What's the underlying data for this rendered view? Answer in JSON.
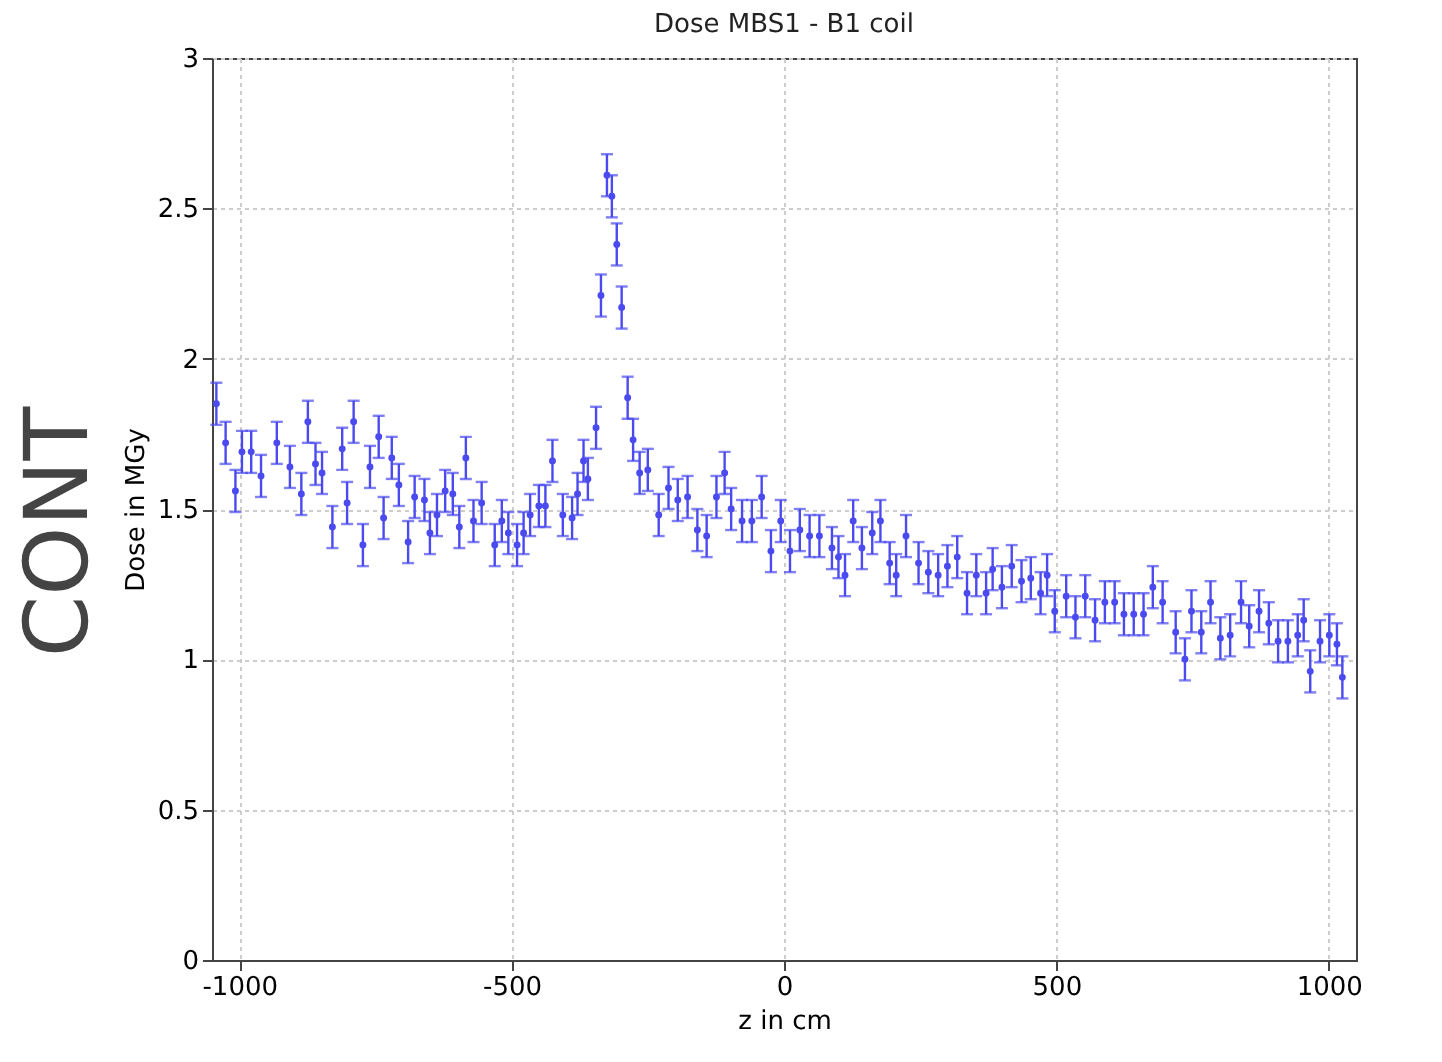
{
  "chart_data": {
    "type": "scatter",
    "title": "Dose MBS1 - B1 coil",
    "xlabel": "z in cm",
    "ylabel": "Dose in MGy",
    "annotations": [
      "CONT"
    ],
    "x": [
      -1042,
      -1025,
      -1007,
      -995,
      -978,
      -960,
      -931,
      -907,
      -886,
      -874,
      -860,
      -848,
      -829,
      -811,
      -802,
      -790,
      -773,
      -760,
      -744,
      -735,
      -720,
      -707,
      -690,
      -678,
      -660,
      -650,
      -637,
      -622,
      -608,
      -596,
      -584,
      -570,
      -555,
      -531,
      -518,
      -506,
      -490,
      -478,
      -466,
      -450,
      -438,
      -425,
      -406,
      -389,
      -379,
      -368,
      -360,
      -345,
      -336,
      -325,
      -316,
      -307,
      -298,
      -287,
      -277,
      -265,
      -250,
      -230,
      -212,
      -195,
      -177,
      -159,
      -142,
      -124,
      -109,
      -97,
      -77,
      -59,
      -41,
      -24,
      -6,
      11,
      29,
      47,
      65,
      88,
      100,
      112,
      127,
      143,
      162,
      177,
      194,
      206,
      224,
      247,
      265,
      283,
      300,
      318,
      336,
      353,
      371,
      383,
      400,
      418,
      436,
      453,
      471,
      483,
      497,
      518,
      535,
      553,
      571,
      589,
      607,
      624,
      642,
      660,
      677,
      695,
      719,
      736,
      748,
      766,
      783,
      801,
      819,
      839,
      854,
      872,
      890,
      907,
      925,
      943,
      954,
      966,
      984,
      1001,
      1015,
      1025
    ],
    "series": [
      {
        "color": "#4a4af0",
        "values": [
          1.85,
          1.72,
          1.56,
          1.69,
          1.69,
          1.61,
          1.72,
          1.64,
          1.55,
          1.79,
          1.65,
          1.62,
          1.44,
          1.7,
          1.52,
          1.79,
          1.38,
          1.64,
          1.74,
          1.47,
          1.67,
          1.58,
          1.39,
          1.54,
          1.53,
          1.42,
          1.48,
          1.56,
          1.55,
          1.44,
          1.67,
          1.46,
          1.52,
          1.38,
          1.46,
          1.42,
          1.38,
          1.42,
          1.48,
          1.51,
          1.51,
          1.66,
          1.48,
          1.47,
          1.55,
          1.66,
          1.6,
          1.77,
          2.21,
          2.61,
          2.54,
          2.38,
          2.17,
          1.87,
          1.73,
          1.62,
          1.63,
          1.48,
          1.57,
          1.53,
          1.54,
          1.43,
          1.41,
          1.54,
          1.62,
          1.5,
          1.46,
          1.46,
          1.54,
          1.36,
          1.46,
          1.36,
          1.43,
          1.41,
          1.41,
          1.37,
          1.34,
          1.28,
          1.46,
          1.37,
          1.42,
          1.46,
          1.32,
          1.28,
          1.41,
          1.32,
          1.29,
          1.28,
          1.31,
          1.34,
          1.22,
          1.28,
          1.22,
          1.3,
          1.24,
          1.31,
          1.26,
          1.27,
          1.22,
          1.28,
          1.16,
          1.21,
          1.14,
          1.21,
          1.13,
          1.19,
          1.19,
          1.15,
          1.15,
          1.15,
          1.24,
          1.19,
          1.09,
          1.0,
          1.16,
          1.09,
          1.19,
          1.07,
          1.08,
          1.19,
          1.11,
          1.16,
          1.12,
          1.06,
          1.06,
          1.08,
          1.13,
          0.96,
          1.06,
          1.08,
          1.05,
          0.94
        ],
        "errors": [
          0.07,
          0.07,
          0.07,
          0.07,
          0.07,
          0.07,
          0.07,
          0.07,
          0.07,
          0.07,
          0.07,
          0.07,
          0.07,
          0.07,
          0.07,
          0.07,
          0.07,
          0.07,
          0.07,
          0.07,
          0.07,
          0.07,
          0.07,
          0.07,
          0.07,
          0.07,
          0.07,
          0.07,
          0.07,
          0.07,
          0.07,
          0.07,
          0.07,
          0.07,
          0.07,
          0.07,
          0.07,
          0.07,
          0.07,
          0.07,
          0.07,
          0.07,
          0.07,
          0.07,
          0.07,
          0.07,
          0.07,
          0.07,
          0.07,
          0.07,
          0.07,
          0.07,
          0.07,
          0.07,
          0.07,
          0.07,
          0.07,
          0.07,
          0.07,
          0.07,
          0.07,
          0.07,
          0.07,
          0.07,
          0.07,
          0.07,
          0.07,
          0.07,
          0.07,
          0.07,
          0.07,
          0.07,
          0.07,
          0.07,
          0.07,
          0.07,
          0.07,
          0.07,
          0.07,
          0.07,
          0.07,
          0.07,
          0.07,
          0.07,
          0.07,
          0.07,
          0.07,
          0.07,
          0.07,
          0.07,
          0.07,
          0.07,
          0.07,
          0.07,
          0.07,
          0.07,
          0.07,
          0.07,
          0.07,
          0.07,
          0.07,
          0.07,
          0.07,
          0.07,
          0.07,
          0.07,
          0.07,
          0.07,
          0.07,
          0.07,
          0.07,
          0.07,
          0.07,
          0.07,
          0.07,
          0.07,
          0.07,
          0.07,
          0.07,
          0.07,
          0.07,
          0.07,
          0.07,
          0.07,
          0.07,
          0.07,
          0.07,
          0.07,
          0.07,
          0.07,
          0.07,
          0.07
        ]
      }
    ],
    "xlim": [
      -1050,
      1050
    ],
    "xticks": [
      -1000,
      -500,
      0,
      500,
      1000
    ],
    "ylim": [
      0,
      3
    ],
    "yticks": [
      0,
      0.5,
      1,
      1.5,
      2,
      2.5,
      3
    ],
    "grid": true
  }
}
